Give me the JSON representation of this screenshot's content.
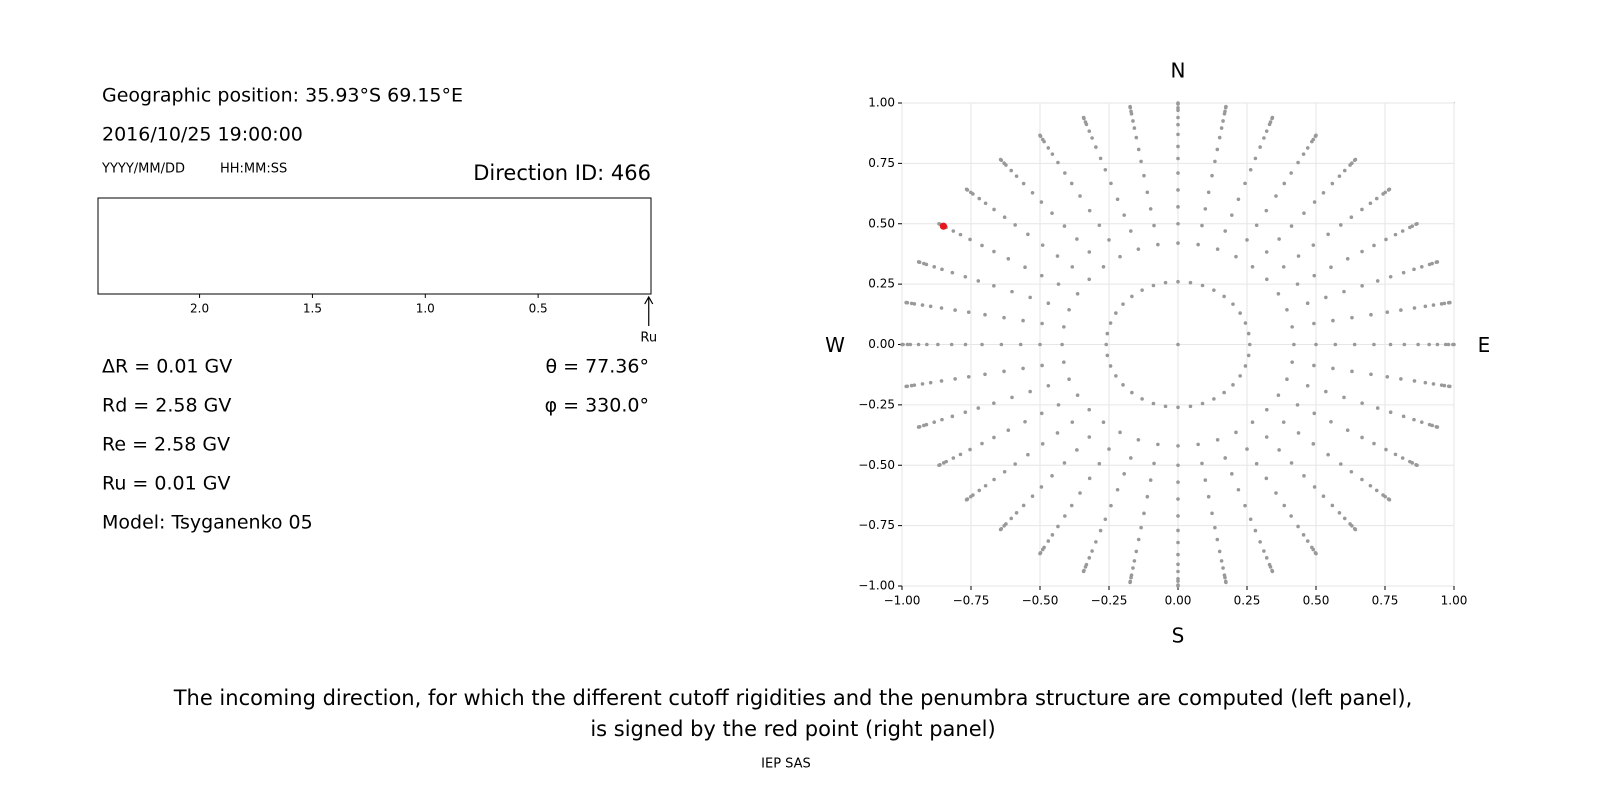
{
  "header": {
    "position": "Geographic position: 35.93°S 69.15°E",
    "datetime": "2016/10/25 19:00:00",
    "date_format": "YYYY/MM/DD",
    "time_format": "HH:MM:SS",
    "direction_id": "Direction ID: 466"
  },
  "penumbra": {
    "xlim": [
      2.45,
      0
    ],
    "xticks": [
      {
        "value": 2,
        "label": "2.0"
      },
      {
        "value": 1.5,
        "label": "1.5"
      },
      {
        "value": 1,
        "label": "1.0"
      },
      {
        "value": 0.5,
        "label": "0.5"
      }
    ],
    "arrow_label": "Ru",
    "arrow_at": 0.01
  },
  "params": {
    "left": [
      "ΔR = 0.01 GV",
      "Rd = 2.58 GV",
      "Re = 2.58 GV",
      "Ru = 0.01 GV",
      "Model: Tsyganenko 05"
    ],
    "right": [
      "θ = 77.36°",
      "φ = 330.0°"
    ]
  },
  "chart_data": {
    "type": "scatter",
    "compass": {
      "north": "N",
      "south": "S",
      "west": "W",
      "east": "E"
    },
    "xlim": [
      -1,
      1
    ],
    "ylim": [
      -1,
      1
    ],
    "xticks": [
      {
        "value": -1,
        "label": "−1.00"
      },
      {
        "value": -0.75,
        "label": "−0.75"
      },
      {
        "value": -0.5,
        "label": "−0.50"
      },
      {
        "value": -0.25,
        "label": "−0.25"
      },
      {
        "value": 0,
        "label": "0.00"
      },
      {
        "value": 0.25,
        "label": "0.25"
      },
      {
        "value": 0.5,
        "label": "0.50"
      },
      {
        "value": 0.75,
        "label": "0.75"
      },
      {
        "value": 1,
        "label": "1.00"
      }
    ],
    "yticks": [
      {
        "value": -1,
        "label": "−1.00"
      },
      {
        "value": -0.75,
        "label": "−0.75"
      },
      {
        "value": -0.5,
        "label": "−0.50"
      },
      {
        "value": -0.25,
        "label": "−0.25"
      },
      {
        "value": 0,
        "label": "0.00"
      },
      {
        "value": 0.25,
        "label": "0.25"
      },
      {
        "value": 0.5,
        "label": "0.50"
      },
      {
        "value": 0.75,
        "label": "0.75"
      },
      {
        "value": 1,
        "label": "1.00"
      }
    ],
    "grid": true,
    "color": "#999999",
    "azimuths": [
      0,
      10,
      20,
      30,
      40,
      50,
      60,
      70,
      80,
      90,
      100,
      110,
      120,
      130,
      140,
      150,
      160,
      170,
      180,
      190,
      200,
      210,
      220,
      230,
      240,
      250,
      260,
      270,
      280,
      290,
      300,
      310,
      320,
      330,
      340,
      350
    ],
    "radii": [
      0.42,
      0.5,
      0.57,
      0.64,
      0.71,
      0.77,
      0.82,
      0.87,
      0.91,
      0.94,
      0.97,
      0.98,
      0.996,
      1.0
    ],
    "ring_radius": 0.26,
    "center": [
      0,
      0
    ],
    "highlight": {
      "x": -0.85,
      "y": 0.49,
      "color": "#e8161b"
    }
  },
  "caption": [
    "The incoming direction, for which the different cutoff rigidities and the penumbra structure are computed (left panel),",
    "is signed by the red point (right panel)"
  ],
  "footer": "IEP SAS"
}
